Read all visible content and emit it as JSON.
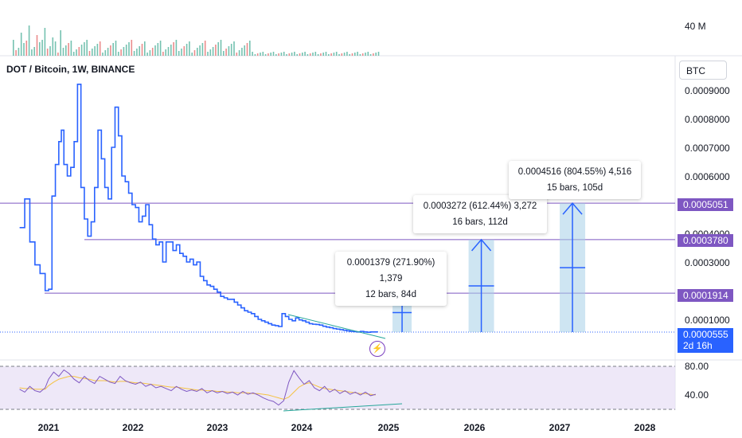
{
  "chart_data": {
    "type": "line",
    "title": "DOT / Bitcoin, 1W, BINANCE",
    "currency": "BTC",
    "volume_label": "40 M",
    "x_ticks": [
      "2021",
      "2022",
      "2023",
      "2024",
      "2025",
      "2026",
      "2027",
      "2028"
    ],
    "y_ticks": [
      "0.0009000",
      "0.0008000",
      "0.0007000",
      "0.0006000",
      "0.0004000",
      "0.0003000",
      "0.0001000"
    ],
    "ylim": [
      3.75e-05,
      0.000955
    ],
    "series": [
      {
        "x": [
          2020.66,
          2020.72,
          2020.78,
          2020.84,
          2020.9,
          2020.96,
          2021.0,
          2021.04,
          2021.08,
          2021.12,
          2021.15,
          2021.18,
          2021.22,
          2021.26,
          2021.3,
          2021.34,
          2021.38,
          2021.42,
          2021.46,
          2021.5,
          2021.54,
          2021.58,
          2021.62,
          2021.66,
          2021.7,
          2021.74,
          2021.78,
          2021.82,
          2021.86,
          2021.9,
          2021.94,
          2021.98,
          2022.02,
          2022.06,
          2022.1,
          2022.14,
          2022.18,
          2022.22,
          2022.26,
          2022.3,
          2022.34,
          2022.38,
          2022.42,
          2022.46,
          2022.5,
          2022.54,
          2022.58,
          2022.62,
          2022.66,
          2022.7,
          2022.74,
          2022.78,
          2022.82,
          2022.86,
          2022.9,
          2022.94,
          2022.98,
          2023.02,
          2023.06,
          2023.1,
          2023.14,
          2023.18,
          2023.22,
          2023.26,
          2023.3,
          2023.34,
          2023.38,
          2023.42,
          2023.46,
          2023.5,
          2023.54,
          2023.58,
          2023.62,
          2023.66,
          2023.7,
          2023.74,
          2023.78,
          2023.82,
          2023.86,
          2023.9,
          2023.94,
          2023.98,
          2024.02,
          2024.06,
          2024.1,
          2024.14,
          2024.18,
          2024.22,
          2024.26,
          2024.3,
          2024.34,
          2024.38,
          2024.42,
          2024.46,
          2024.5,
          2024.54,
          2024.58,
          2024.62,
          2024.66,
          2024.7,
          2024.74,
          2024.78,
          2024.82,
          2024.86
        ],
        "y": [
          0.00042,
          0.00052,
          0.00037,
          0.00029,
          0.00026,
          0.0002,
          0.000205,
          0.00053,
          0.00064,
          0.00072,
          0.00076,
          0.00064,
          0.0006,
          0.00063,
          0.00072,
          0.00092,
          0.00056,
          0.00045,
          0.00039,
          0.00044,
          0.00056,
          0.00076,
          0.00066,
          0.00056,
          0.00052,
          0.0007,
          0.00084,
          0.00074,
          0.0006,
          0.00058,
          0.00054,
          0.0005,
          0.00049,
          0.00044,
          0.00046,
          0.0005,
          0.00043,
          0.00038,
          0.00036,
          0.00037,
          0.0003,
          0.00037,
          0.00037,
          0.00034,
          0.00036,
          0.00033,
          0.00032,
          0.0003,
          0.00031,
          0.00029,
          0.0003,
          0.00025,
          0.000235,
          0.00022,
          0.000215,
          0.000205,
          0.000195,
          0.00018,
          0.000175,
          0.00017,
          0.00017,
          0.00016,
          0.00015,
          0.00014,
          0.00013,
          0.000125,
          0.00012,
          0.00011,
          0.0001,
          9.5e-05,
          9e-05,
          8.5e-05,
          8e-05,
          7.8e-05,
          7.5e-05,
          0.00012,
          0.00011,
          0.0001,
          9.5e-05,
          0.000105,
          9.8e-05,
          9.5e-05,
          9e-05,
          8.5e-05,
          8.3e-05,
          8.2e-05,
          8e-05,
          7.6e-05,
          7.3e-05,
          7.1e-05,
          6.8e-05,
          6.6e-05,
          6.4e-05,
          6.2e-05,
          6e-05,
          5.8e-05,
          5.7e-05,
          5.6e-05,
          5.8e-05,
          5.6e-05,
          5.5e-05,
          5.6e-05,
          5.6e-05,
          5.5e-05
        ]
      }
    ],
    "horizontal_levels": [
      {
        "value": 0.0005051,
        "label": "0.0005051"
      },
      {
        "value": 0.000378,
        "label": "0.0003780"
      },
      {
        "value": 0.0001914,
        "label": "0.0001914"
      }
    ],
    "last_price": {
      "value": 5.55e-05,
      "label": "0.0000555",
      "countdown": "2d 16h"
    },
    "projections": [
      {
        "x": 2025.15,
        "target": 0.0001914,
        "line1": "0.0001379 (271.90%) 1,379",
        "line2": "12 bars, 84d"
      },
      {
        "x": 2026.08,
        "target": 0.000378,
        "line1": "0.0003272 (612.44%) 3,272",
        "line2": "16 bars, 112d"
      },
      {
        "x": 2027.15,
        "target": 0.0005051,
        "line1": "0.0004516 (804.55%) 4,516",
        "line2": "15 bars, 105d"
      }
    ],
    "rsi": {
      "ticks": [
        "80.00",
        "40.00"
      ],
      "ylim": [
        20,
        90
      ],
      "x": [
        2020.66,
        2020.72,
        2020.78,
        2020.84,
        2020.9,
        2020.96,
        2021.0,
        2021.06,
        2021.12,
        2021.18,
        2021.24,
        2021.3,
        2021.36,
        2021.42,
        2021.48,
        2021.54,
        2021.6,
        2021.66,
        2021.72,
        2021.78,
        2021.84,
        2021.9,
        2021.96,
        2022.02,
        2022.08,
        2022.14,
        2022.2,
        2022.26,
        2022.32,
        2022.38,
        2022.44,
        2022.5,
        2022.56,
        2022.62,
        2022.68,
        2022.74,
        2022.8,
        2022.86,
        2022.92,
        2022.98,
        2023.04,
        2023.1,
        2023.16,
        2023.22,
        2023.28,
        2023.34,
        2023.4,
        2023.46,
        2023.52,
        2023.58,
        2023.64,
        2023.7,
        2023.76,
        2023.82,
        2023.88,
        2023.94,
        2024.0,
        2024.06,
        2024.12,
        2024.18,
        2024.24,
        2024.3,
        2024.36,
        2024.42,
        2024.48,
        2024.54,
        2024.6,
        2024.66,
        2024.72,
        2024.78,
        2024.84
      ],
      "y": [
        48,
        44,
        52,
        46,
        44,
        50,
        62,
        72,
        66,
        75,
        70,
        62,
        57,
        66,
        60,
        56,
        66,
        62,
        58,
        56,
        66,
        60,
        57,
        55,
        58,
        52,
        55,
        50,
        52,
        49,
        46,
        52,
        48,
        45,
        47,
        45,
        49,
        43,
        46,
        43,
        45,
        42,
        44,
        40,
        45,
        41,
        43,
        40,
        36,
        33,
        31,
        26,
        32,
        58,
        74,
        64,
        55,
        60,
        50,
        46,
        52,
        44,
        48,
        42,
        46,
        41,
        44,
        40,
        44,
        39,
        41
      ],
      "ma": [
        50,
        49,
        49,
        48,
        48,
        48,
        53,
        58,
        62,
        64,
        66,
        66,
        64,
        63,
        62,
        60,
        60,
        60,
        59,
        58,
        59,
        59,
        58,
        57,
        57,
        56,
        55,
        54,
        53,
        52,
        51,
        51,
        50,
        49,
        48,
        47,
        47,
        46,
        46,
        45,
        45,
        44,
        44,
        43,
        43,
        43,
        42,
        42,
        41,
        40,
        38,
        36,
        34,
        37,
        44,
        51,
        55,
        57,
        54,
        51,
        49,
        48,
        47,
        46,
        45,
        44,
        43,
        42,
        42,
        41,
        40
      ]
    }
  },
  "colors": {
    "price_line": "#2962ff",
    "level_line": "#7e57c2",
    "badge_bg": "#7e57c2",
    "projection_fill": "#a5cfe8",
    "projection_arrow": "#2962ff",
    "rsi_line": "#7e57c2",
    "rsi_ma": "#f5c242",
    "rsi_bg": "#e8e0f5",
    "divergence": "#26a69a",
    "volume_up": "#3aa88f",
    "volume_down": "#e35b5b"
  },
  "icons": {
    "alert": "lightning-bolt-icon"
  }
}
